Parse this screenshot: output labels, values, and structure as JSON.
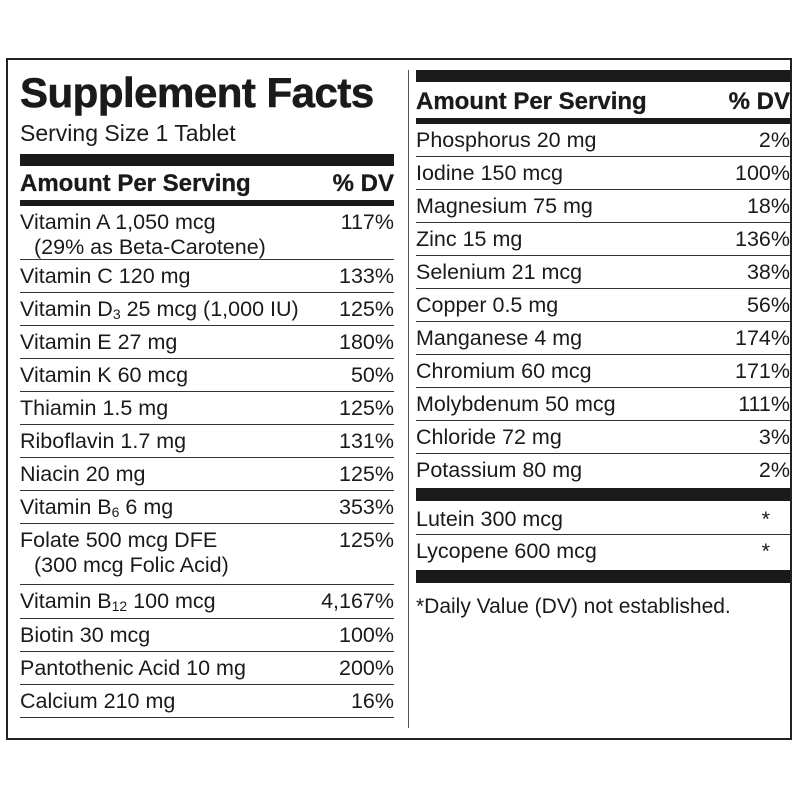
{
  "label": {
    "title": "Supplement Facts",
    "serving_size": "Serving Size 1 Tablet",
    "header_amount": "Amount Per Serving",
    "header_dv": "% DV",
    "left_rows": [
      {
        "name": "Vitamin A 1,050 mcg",
        "sub": "(29% as Beta-Carotene)",
        "dv": "117%"
      },
      {
        "name": "Vitamin C 120 mg",
        "dv": "133%"
      },
      {
        "name_pre": "Vitamin D",
        "name_sub": "3",
        "name_post": " 25 mcg (1,000 IU)",
        "dv": "125%"
      },
      {
        "name": "Vitamin E 27 mg",
        "dv": "180%"
      },
      {
        "name": "Vitamin K 60 mcg",
        "dv": "50%"
      },
      {
        "name": "Thiamin 1.5 mg",
        "dv": "125%"
      },
      {
        "name": "Riboflavin 1.7 mg",
        "dv": "131%"
      },
      {
        "name": "Niacin 20 mg",
        "dv": "125%"
      },
      {
        "name_pre": "Vitamin B",
        "name_sub": "6",
        "name_post": " 6 mg",
        "dv": "353%"
      },
      {
        "name": "Folate 500 mcg DFE",
        "sub": "(300 mcg Folic Acid)",
        "dv": "125%"
      },
      {
        "name_pre": "Vitamin B",
        "name_sub": "12",
        "name_post": " 100 mcg",
        "dv": "4,167%"
      },
      {
        "name": "Biotin 30 mcg",
        "dv": "100%"
      },
      {
        "name": "Pantothenic Acid 10 mg",
        "dv": "200%"
      },
      {
        "name": "Calcium 210 mg",
        "dv": "16%"
      }
    ],
    "right_rows": [
      {
        "name": "Phosphorus 20 mg",
        "dv": "2%"
      },
      {
        "name": "Iodine 150 mcg",
        "dv": "100%"
      },
      {
        "name": "Magnesium 75 mg",
        "dv": "18%"
      },
      {
        "name": "Zinc 15 mg",
        "dv": "136%"
      },
      {
        "name": "Selenium 21 mcg",
        "dv": "38%"
      },
      {
        "name": "Copper 0.5 mg",
        "dv": "56%"
      },
      {
        "name": "Manganese 4 mg",
        "dv": "174%"
      },
      {
        "name": "Chromium 60 mcg",
        "dv": "171%"
      },
      {
        "name": "Molybdenum 50 mcg",
        "dv": "111%"
      },
      {
        "name": "Chloride 72 mg",
        "dv": "3%"
      },
      {
        "name": "Potassium 80 mg",
        "dv": "2%"
      }
    ],
    "other_rows": [
      {
        "name": "Lutein 300 mcg",
        "dv": "*"
      },
      {
        "name": "Lycopene 600 mcg",
        "dv": "*"
      }
    ],
    "footnote": "*Daily Value (DV) not established."
  }
}
